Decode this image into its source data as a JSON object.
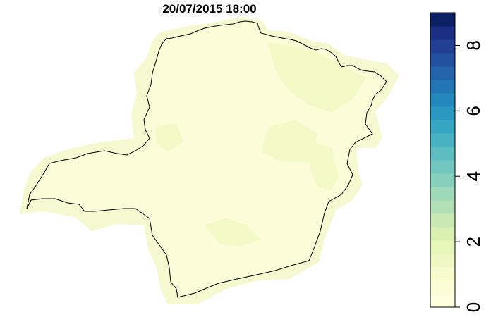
{
  "title": "20/07/2015 18:00",
  "legend": {
    "min": 0,
    "max": 9,
    "ticks": [
      {
        "value": 0,
        "label": "0"
      },
      {
        "value": 2,
        "label": "2"
      },
      {
        "value": 4,
        "label": "4"
      },
      {
        "value": 6,
        "label": "6"
      },
      {
        "value": 8,
        "label": "8"
      }
    ],
    "colors": [
      "#FFFFE0",
      "#FCFDD7",
      "#F7FBCD",
      "#EFF8C2",
      "#E6F5B8",
      "#D9F0B2",
      "#C8E9B4",
      "#B3E1B7",
      "#9ED9B9",
      "#88D0BD",
      "#72C7BF",
      "#5DBDC1",
      "#48B2C3",
      "#37A6C3",
      "#2B98C1",
      "#2488BC",
      "#2276B4",
      "#2364AA",
      "#24519F",
      "#233F93",
      "#1B2F82",
      "#0B1F63"
    ]
  },
  "map": {
    "region_fill_primary": "#FCFDD8",
    "region_fill_secondary": "#F4F8C6",
    "halo_fill": "#F6F9D0"
  }
}
